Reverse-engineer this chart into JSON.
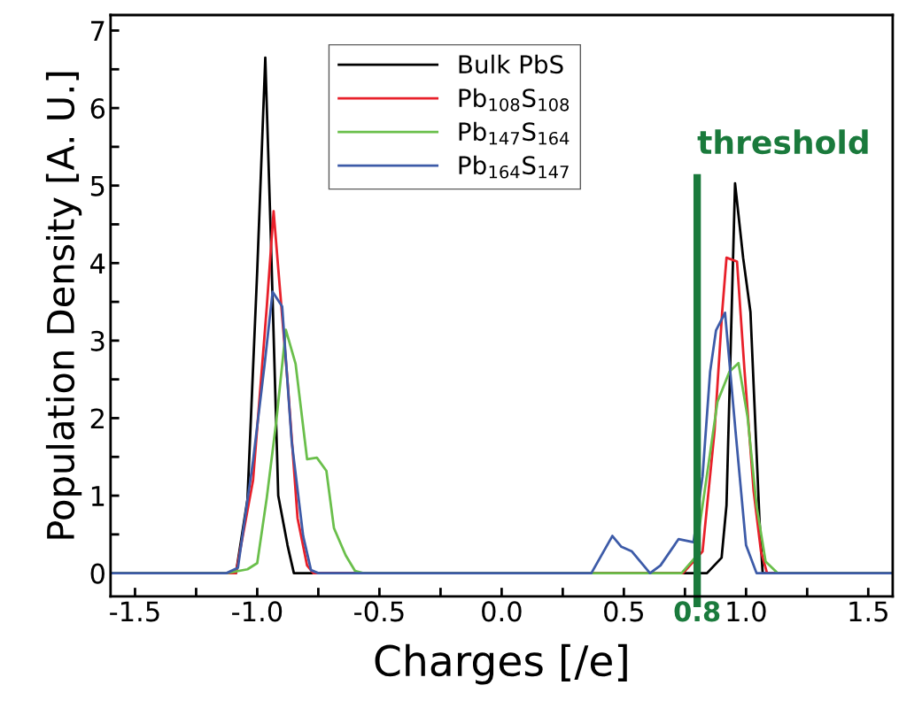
{
  "chart_data": {
    "type": "line",
    "xlabel": "Charges [/e]",
    "ylabel": "Population Density [A. U.]",
    "xlim": [
      -1.6,
      1.6
    ],
    "ylim": [
      -0.3,
      7.2
    ],
    "xticks": [
      {
        "value": -1.5,
        "label": "-1.5"
      },
      {
        "value": -1.25,
        "label": null
      },
      {
        "value": -1.0,
        "label": "-1.0"
      },
      {
        "value": -0.75,
        "label": null
      },
      {
        "value": -0.5,
        "label": "-0.5"
      },
      {
        "value": -0.25,
        "label": null
      },
      {
        "value": 0.0,
        "label": "0.0"
      },
      {
        "value": 0.25,
        "label": null
      },
      {
        "value": 0.5,
        "label": "0.5"
      },
      {
        "value": 0.75,
        "label": null
      },
      {
        "value": 0.8,
        "label": "0.8"
      },
      {
        "value": 1.0,
        "label": "1.0"
      },
      {
        "value": 1.25,
        "label": null
      },
      {
        "value": 1.5,
        "label": "1.5"
      }
    ],
    "yticks": [
      0,
      {
        "value": 0.5,
        "label": null
      },
      1,
      {
        "value": 1.5,
        "label": null
      },
      2,
      {
        "value": 2.5,
        "label": null
      },
      3,
      {
        "value": 3.5,
        "label": null
      },
      4,
      {
        "value": 4.5,
        "label": null
      },
      5,
      {
        "value": 5.5,
        "label": null
      },
      6,
      {
        "value": 6.5,
        "label": null
      },
      7
    ],
    "grid": false,
    "legend": "top center",
    "ref_lines": [
      {
        "axis": "x",
        "value": 0.8,
        "label": "threshold",
        "color": "#1a7a3c"
      }
    ],
    "series": [
      {
        "name": "Bulk PbS",
        "color": "#000000",
        "x": [
          -1.6,
          -1.087,
          -1.04,
          -1.0,
          -0.967,
          -0.945,
          -0.914,
          -0.876,
          -0.85,
          0.84,
          0.9,
          0.92,
          0.955,
          0.988,
          1.018,
          1.055,
          1.068,
          1.6
        ],
        "values": [
          0,
          0,
          0.95,
          3.9,
          6.65,
          4.4,
          1.0,
          0.36,
          0,
          0,
          0.2,
          0.88,
          5.03,
          4.07,
          3.37,
          0.68,
          0,
          0
        ]
      },
      {
        "name": "Pb$_{108}$S$_{108}$",
        "color": "#e8202a",
        "x": [
          -1.6,
          -1.087,
          -1.017,
          -0.961,
          -0.933,
          -0.914,
          -0.875,
          -0.835,
          -0.796,
          -0.77,
          0.742,
          0.822,
          0.871,
          0.902,
          0.92,
          0.963,
          0.994,
          1.031,
          1.061,
          1.086,
          1.6
        ],
        "values": [
          0,
          0,
          1.2,
          3.43,
          4.67,
          3.93,
          2.44,
          0.71,
          0.1,
          0,
          0,
          0.28,
          1.83,
          3.36,
          4.07,
          4.02,
          2.6,
          1.06,
          0.28,
          0,
          0
        ]
      },
      {
        "name": "Pb$_{147}$S$_{164}$",
        "color": "#6abf4b",
        "x": [
          -1.6,
          -1.126,
          -1.04,
          -1.0,
          -0.961,
          -0.922,
          -0.883,
          -0.843,
          -0.796,
          -0.756,
          -0.717,
          -0.686,
          -0.638,
          -0.6,
          -0.565,
          0.736,
          0.791,
          0.822,
          0.883,
          0.932,
          0.969,
          1.006,
          1.043,
          1.08,
          1.129,
          1.6
        ],
        "values": [
          0,
          0,
          0.05,
          0.13,
          0.97,
          1.96,
          3.14,
          2.7,
          1.47,
          1.49,
          1.32,
          0.58,
          0.23,
          0.03,
          0,
          0,
          0.2,
          0.87,
          2.21,
          2.6,
          2.71,
          2.02,
          0.87,
          0.15,
          0,
          0
        ]
      },
      {
        "name": "Pb$_{164}$S$_{147}$",
        "color": "#3d5ba8",
        "x": [
          -1.6,
          -1.126,
          -1.079,
          -1.017,
          -0.97,
          -0.937,
          -0.898,
          -0.859,
          -0.812,
          -0.78,
          -0.75,
          0.33,
          0.367,
          0.453,
          0.49,
          0.533,
          0.607,
          0.65,
          0.724,
          0.785,
          0.822,
          0.853,
          0.877,
          0.914,
          0.957,
          1.0,
          1.043,
          1.6
        ],
        "values": [
          0,
          0,
          0.07,
          1.45,
          2.69,
          3.63,
          3.44,
          1.7,
          0.48,
          0.04,
          0,
          0,
          0,
          0.48,
          0.34,
          0.28,
          0,
          0.1,
          0.44,
          0.4,
          1.25,
          2.6,
          3.13,
          3.36,
          1.83,
          0.36,
          0,
          0
        ]
      }
    ]
  }
}
